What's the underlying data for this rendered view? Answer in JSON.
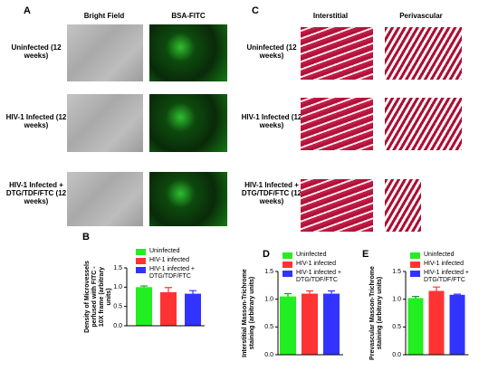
{
  "panel_a": {
    "label": "A",
    "columns": [
      "Bright Field",
      "BSA-FITC"
    ],
    "rows": [
      "Uninfected (12 weeks)",
      "HIV-1 Infected (12 weeks)",
      "HIV-1 Infected + DTG/TDF/FTC (12 weeks)"
    ]
  },
  "panel_c": {
    "label": "C",
    "columns": [
      "Interstitial",
      "Perivascular"
    ],
    "rows": [
      "Uninfected (12 weeks)",
      "HIV-1 Infected (12 weeks)",
      "HIV-1 Infected + DTG/TDF/FTC (12 weeks)"
    ]
  },
  "chart_data": [
    {
      "type": "bar",
      "label": "B",
      "y_label": "Density of Microvessels perfused with FITC - 10X frame (arbitrary units)",
      "ylim": [
        0,
        1.5
      ],
      "yticks": [
        {
          "value": 0,
          "label": "0.0"
        },
        0.5,
        {
          "value": 1,
          "label": "1.0"
        },
        1.5
      ],
      "series": [
        {
          "name": "Uninfected",
          "color": "#22ee22",
          "values": [
            1.0
          ],
          "errors": [
            0.03
          ]
        },
        {
          "name": "HIV-1 infected",
          "color": "#ff3333",
          "values": [
            0.87
          ],
          "errors": [
            0.12
          ]
        },
        {
          "name": "HIV-1 infected + DTG/TDF/FTC",
          "color": "#3333ff",
          "values": [
            0.83
          ],
          "errors": [
            0.08
          ]
        }
      ]
    },
    {
      "type": "bar",
      "label": "D",
      "y_label": "Interstitial Masson-Trichrome staining (arbitrary units)",
      "ylim": [
        0,
        1.5
      ],
      "yticks": [
        {
          "value": 0,
          "label": "0.0"
        },
        0.5,
        {
          "value": 1,
          "label": "1.0"
        },
        1.5
      ],
      "series": [
        {
          "name": "Uninfected",
          "color": "#22ee22",
          "values": [
            1.05
          ],
          "errors": [
            0.05
          ]
        },
        {
          "name": "HIV-1 infected",
          "color": "#ff3333",
          "values": [
            1.1
          ],
          "errors": [
            0.05
          ]
        },
        {
          "name": "HIV-1 infected + DTG/TDF/FTC",
          "color": "#3333ff",
          "values": [
            1.1
          ],
          "errors": [
            0.05
          ]
        }
      ]
    },
    {
      "type": "bar",
      "label": "E",
      "y_label": "Prevascular Masson-Trichrome staining (arbitrary units)",
      "ylim": [
        0,
        1.5
      ],
      "yticks": [
        {
          "value": 0,
          "label": "0.0"
        },
        0.5,
        {
          "value": 1,
          "label": "1.0"
        },
        1.5
      ],
      "series": [
        {
          "name": "Uninfected",
          "color": "#22ee22",
          "values": [
            1.02
          ],
          "errors": [
            0.03
          ]
        },
        {
          "name": "HIV-1 infected",
          "color": "#ff3333",
          "values": [
            1.15
          ],
          "errors": [
            0.07
          ]
        },
        {
          "name": "HIV-1 infected + DTG/TDF/FTC",
          "color": "#3333ff",
          "values": [
            1.08
          ],
          "errors": [
            0.01
          ]
        }
      ]
    }
  ]
}
